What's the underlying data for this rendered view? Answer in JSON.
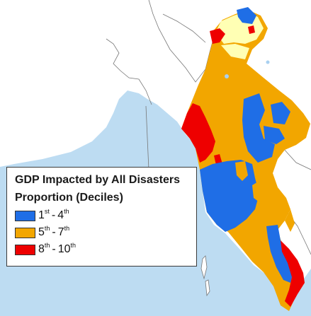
{
  "map": {
    "colors": {
      "land": "#ffffff",
      "sea": "#bddcf2",
      "lake": "#a9d0f0",
      "border": "#777777",
      "decile_low": "#1f6ee6",
      "decile_mid": "#f2a600",
      "decile_high": "#ee0000",
      "no_data": "#ffffb4"
    }
  },
  "legend": {
    "title": "GDP Impacted by All Disasters",
    "subtitle": "Proportion (Deciles)",
    "items": [
      {
        "from": "1",
        "from_sup": "st",
        "to": "4",
        "to_sup": "th",
        "color": "#1f6ee6"
      },
      {
        "from": "5",
        "from_sup": "th",
        "to": "7",
        "to_sup": "th",
        "color": "#f2a600"
      },
      {
        "from": "8",
        "from_sup": "th",
        "to": "10",
        "to_sup": "th",
        "color": "#ee0000"
      }
    ]
  }
}
